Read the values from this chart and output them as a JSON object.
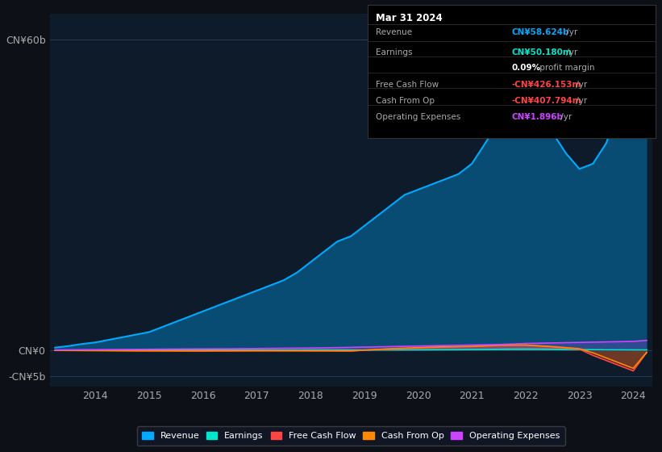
{
  "background_color": "#0d1117",
  "plot_bg_color": "#0d1b2a",
  "tooltip": {
    "date": "Mar 31 2024",
    "Revenue": "CN¥58.624b /yr",
    "Earnings": "CN¥50.180m /yr",
    "profit_margin": "0.09% profit margin",
    "Free Cash Flow": "-CN¥426.153m /yr",
    "Cash From Op": "-CN¥407.794m /yr",
    "Operating Expenses": "CN¥1.896b /yr"
  },
  "years": [
    2013.25,
    2013.5,
    2013.75,
    2014.0,
    2014.25,
    2014.5,
    2014.75,
    2015.0,
    2015.25,
    2015.5,
    2015.75,
    2016.0,
    2016.25,
    2016.5,
    2016.75,
    2017.0,
    2017.25,
    2017.5,
    2017.75,
    2018.0,
    2018.25,
    2018.5,
    2018.75,
    2019.0,
    2019.25,
    2019.5,
    2019.75,
    2020.0,
    2020.25,
    2020.5,
    2020.75,
    2021.0,
    2021.25,
    2021.5,
    2021.75,
    2022.0,
    2022.25,
    2022.5,
    2022.75,
    2023.0,
    2023.25,
    2023.5,
    2023.75,
    2024.0,
    2024.25
  ],
  "revenue": [
    0.5,
    0.8,
    1.2,
    1.5,
    2.0,
    2.5,
    3.0,
    3.5,
    4.5,
    5.5,
    6.5,
    7.5,
    8.5,
    9.5,
    10.5,
    11.5,
    12.5,
    13.5,
    15.0,
    17.0,
    19.0,
    21.0,
    22.0,
    24.0,
    26.0,
    28.0,
    30.0,
    31.0,
    32.0,
    33.0,
    34.0,
    36.0,
    40.0,
    44.0,
    47.0,
    48.0,
    45.0,
    42.0,
    38.0,
    35.0,
    36.0,
    40.0,
    48.0,
    55.0,
    58.624
  ],
  "earnings": [
    0.0,
    0.0,
    0.0,
    0.0,
    0.02,
    0.03,
    0.04,
    0.05,
    0.06,
    0.07,
    0.08,
    0.07,
    0.06,
    0.05,
    0.05,
    0.04,
    0.04,
    0.04,
    0.04,
    0.05,
    0.05,
    0.05,
    0.04,
    0.04,
    0.04,
    0.05,
    0.06,
    0.07,
    0.08,
    0.09,
    0.1,
    0.12,
    0.15,
    0.18,
    0.2,
    0.22,
    0.2,
    0.18,
    0.15,
    0.12,
    0.1,
    0.08,
    0.07,
    0.06,
    0.05018
  ],
  "free_cash_flow": [
    -0.05,
    -0.06,
    -0.07,
    -0.08,
    -0.1,
    -0.12,
    -0.14,
    -0.15,
    -0.16,
    -0.17,
    -0.18,
    -0.18,
    -0.17,
    -0.16,
    -0.15,
    -0.14,
    -0.13,
    -0.13,
    -0.13,
    -0.14,
    -0.15,
    -0.16,
    -0.18,
    0.0,
    0.1,
    0.2,
    0.3,
    0.4,
    0.5,
    0.6,
    0.65,
    0.7,
    0.8,
    0.9,
    0.95,
    1.0,
    0.8,
    0.6,
    0.4,
    0.2,
    -1.0,
    -2.0,
    -3.0,
    -4.0,
    -0.426153
  ],
  "cash_from_op": [
    -0.04,
    -0.05,
    -0.06,
    -0.07,
    -0.08,
    -0.09,
    -0.1,
    -0.1,
    -0.1,
    -0.1,
    -0.1,
    -0.1,
    -0.09,
    -0.09,
    -0.09,
    -0.09,
    -0.09,
    -0.1,
    -0.1,
    -0.1,
    -0.1,
    -0.1,
    -0.1,
    0.0,
    0.15,
    0.3,
    0.4,
    0.5,
    0.6,
    0.65,
    0.7,
    0.75,
    0.85,
    0.95,
    1.0,
    1.0,
    0.85,
    0.7,
    0.5,
    0.3,
    -0.5,
    -1.5,
    -2.5,
    -3.5,
    -0.407794
  ],
  "operating_expenses": [
    0.05,
    0.07,
    0.09,
    0.1,
    0.12,
    0.14,
    0.16,
    0.18,
    0.2,
    0.22,
    0.24,
    0.25,
    0.26,
    0.28,
    0.3,
    0.32,
    0.35,
    0.38,
    0.4,
    0.42,
    0.45,
    0.5,
    0.55,
    0.6,
    0.65,
    0.7,
    0.75,
    0.8,
    0.85,
    0.9,
    0.95,
    1.0,
    1.05,
    1.1,
    1.2,
    1.3,
    1.35,
    1.4,
    1.45,
    1.5,
    1.55,
    1.6,
    1.65,
    1.7,
    1.896
  ],
  "ylim": [
    -7,
    65
  ],
  "yticks": [
    -5,
    0,
    60
  ],
  "ytick_labels": [
    "-CN¥5b",
    "CN¥0",
    "CN¥60b"
  ],
  "xtick_years": [
    2014,
    2015,
    2016,
    2017,
    2018,
    2019,
    2020,
    2021,
    2022,
    2023,
    2024
  ],
  "colors": {
    "revenue": "#00aaff",
    "earnings": "#00e5cc",
    "free_cash_flow": "#ff4444",
    "cash_from_op": "#ff8800",
    "operating_expenses": "#cc44ff"
  },
  "legend_items": [
    "Revenue",
    "Earnings",
    "Free Cash Flow",
    "Cash From Op",
    "Operating Expenses"
  ],
  "grid_color": "#2a3a4a",
  "text_color": "#aaaaaa",
  "tooltip_bg": "#000000",
  "tooltip_border": "#333333"
}
